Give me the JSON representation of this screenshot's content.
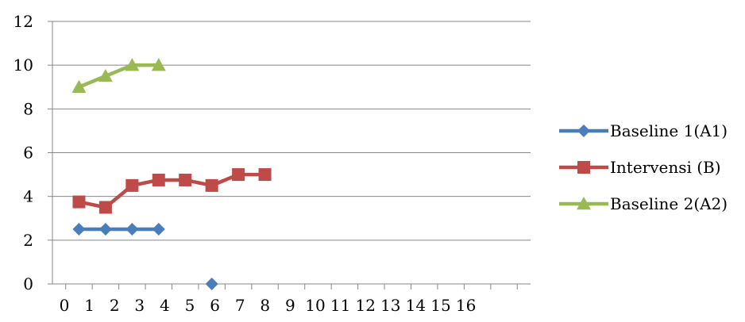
{
  "chart_data": {
    "type": "line",
    "title": "",
    "xlabel": "",
    "ylabel": "",
    "xlim": [
      0,
      18
    ],
    "ylim": [
      0,
      12
    ],
    "grid": "horizontal",
    "legend_placement": "right",
    "x_tick_labels": [
      "0",
      "1",
      "2",
      "3",
      "4",
      "5",
      "6",
      "7",
      "8",
      "9",
      "10",
      "11",
      "12",
      "13",
      "14",
      "15",
      "16"
    ],
    "y_ticks": [
      0,
      2,
      4,
      6,
      8,
      10,
      12
    ],
    "series": [
      {
        "name": "Baseline 1(A1)",
        "color": "#4A7EBB",
        "marker": "diamond",
        "segments": [
          [
            {
              "x": 1,
              "y": 2.5
            },
            {
              "x": 2,
              "y": 2.5
            },
            {
              "x": 3,
              "y": 2.5
            },
            {
              "x": 4,
              "y": 2.5
            }
          ],
          [
            {
              "x": 6,
              "y": 0
            }
          ]
        ]
      },
      {
        "name": "Intervensi (B)",
        "color": "#BE4B48",
        "marker": "square",
        "segments": [
          [
            {
              "x": 1,
              "y": 3.75
            },
            {
              "x": 2,
              "y": 3.5
            },
            {
              "x": 3,
              "y": 4.5
            },
            {
              "x": 4,
              "y": 4.75
            },
            {
              "x": 5,
              "y": 4.75
            },
            {
              "x": 6,
              "y": 4.5
            },
            {
              "x": 7,
              "y": 5
            },
            {
              "x": 8,
              "y": 5
            }
          ]
        ]
      },
      {
        "name": "Baseline 2(A2)",
        "color": "#98B954",
        "marker": "triangle",
        "segments": [
          [
            {
              "x": 1,
              "y": 9
            },
            {
              "x": 2,
              "y": 9.5
            },
            {
              "x": 3,
              "y": 10
            },
            {
              "x": 4,
              "y": 10
            }
          ]
        ]
      }
    ]
  }
}
